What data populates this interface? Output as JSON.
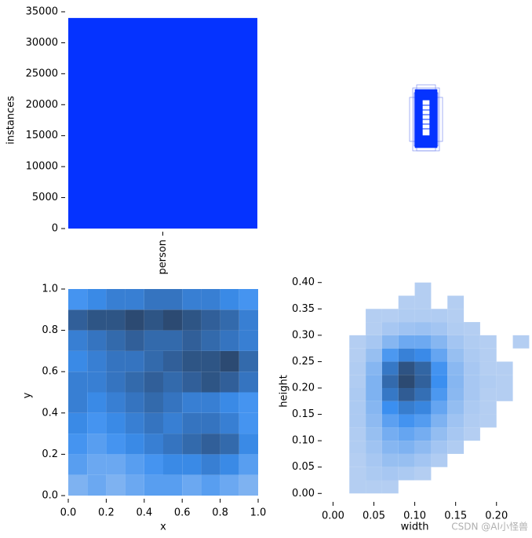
{
  "chart_data": [
    {
      "type": "bar",
      "categories": [
        "person"
      ],
      "values": [
        34000
      ],
      "color": "#0533ff",
      "ylabel": "instances",
      "ylim": [
        0,
        35000
      ],
      "yticks": [
        0,
        5000,
        10000,
        15000,
        20000,
        25000,
        30000,
        35000
      ]
    },
    {
      "type": "hist2d",
      "xlabel": "x",
      "ylabel": "y",
      "xlim": [
        0,
        1
      ],
      "ylim": [
        0,
        1
      ],
      "xticks": [
        {
          "value": 0,
          "label": "0.0"
        },
        0.2,
        0.4,
        0.6,
        0.8,
        {
          "value": 1,
          "label": "1.0"
        }
      ],
      "yticks": [
        {
          "value": 0,
          "label": "0.0"
        },
        0.2,
        0.4,
        0.6,
        0.8,
        {
          "value": 1,
          "label": "1.0"
        }
      ],
      "colors": [
        "#b8d0f2",
        "#3b8ff0",
        "#2c4a72"
      ],
      "x_bins": [
        0,
        0.1,
        0.2,
        0.3,
        0.4,
        0.5,
        0.6,
        0.7,
        0.8,
        0.9,
        1
      ],
      "y_bins": [
        0,
        0.1,
        0.2,
        0.3,
        0.4,
        0.5,
        0.6,
        0.7,
        0.8,
        0.9,
        1
      ],
      "counts": [
        [
          3,
          4,
          3,
          4,
          5,
          5,
          4,
          5,
          4,
          3
        ],
        [
          5,
          4,
          4,
          5,
          6,
          7,
          7,
          8,
          7,
          5
        ],
        [
          6,
          5,
          6,
          7,
          8,
          9,
          10,
          11,
          10,
          7
        ],
        [
          7,
          6,
          7,
          8,
          9,
          8,
          9,
          9,
          8,
          6
        ],
        [
          8,
          7,
          8,
          9,
          10,
          9,
          8,
          8,
          7,
          6
        ],
        [
          8,
          8,
          9,
          10,
          11,
          10,
          11,
          12,
          11,
          9
        ],
        [
          7,
          8,
          9,
          9,
          10,
          11,
          12,
          12,
          13,
          10
        ],
        [
          8,
          9,
          10,
          11,
          10,
          10,
          11,
          10,
          9,
          8
        ],
        [
          11,
          12,
          12,
          13,
          12,
          13,
          12,
          11,
          10,
          8
        ],
        [
          6,
          7,
          8,
          8,
          9,
          9,
          8,
          8,
          7,
          6
        ]
      ]
    },
    {
      "type": "hist2d",
      "xlabel": "width",
      "ylabel": "height",
      "xlim": [
        -0.01,
        0.23
      ],
      "ylim": [
        -0.01,
        0.41
      ],
      "xticks": [
        {
          "value": 0,
          "label": "0.00"
        },
        0.05,
        {
          "value": 0.1,
          "label": "0.10"
        },
        0.15,
        {
          "value": 0.2,
          "label": "0.20"
        }
      ],
      "yticks": [
        {
          "value": 0,
          "label": "0.00"
        },
        0.05,
        {
          "value": 0.1,
          "label": "0.10"
        },
        0.15,
        {
          "value": 0.2,
          "label": "0.20"
        },
        0.25,
        {
          "value": 0.3,
          "label": "0.30"
        },
        0.35,
        {
          "value": 0.4,
          "label": "0.40"
        }
      ],
      "colors": [
        "#b8d0f2",
        "#3b8ff0",
        "#2c4a72"
      ],
      "x_bins": [
        0,
        0.02,
        0.04,
        0.06,
        0.08,
        0.1,
        0.12,
        0.14,
        0.16,
        0.18,
        0.2,
        0.22,
        0.24
      ],
      "y_bins": [
        0,
        0.025,
        0.05,
        0.075,
        0.1,
        0.125,
        0.15,
        0.175,
        0.2,
        0.225,
        0.25,
        0.275,
        0.3,
        0.325,
        0.35,
        0.375,
        0.4
      ],
      "counts": [
        [
          0,
          1,
          1,
          1,
          0,
          0,
          0,
          0,
          0,
          0,
          0,
          0
        ],
        [
          0,
          1,
          3,
          4,
          3,
          1,
          0,
          0,
          0,
          0,
          0,
          0
        ],
        [
          0,
          1,
          4,
          8,
          8,
          5,
          2,
          0,
          0,
          0,
          0,
          0
        ],
        [
          0,
          2,
          6,
          12,
          14,
          10,
          5,
          2,
          0,
          0,
          0,
          0
        ],
        [
          0,
          2,
          8,
          16,
          20,
          16,
          9,
          4,
          1,
          0,
          0,
          0
        ],
        [
          0,
          3,
          10,
          22,
          28,
          24,
          14,
          6,
          2,
          1,
          0,
          0
        ],
        [
          0,
          3,
          12,
          30,
          38,
          34,
          20,
          9,
          3,
          1,
          0,
          0
        ],
        [
          0,
          3,
          14,
          40,
          52,
          44,
          26,
          11,
          4,
          1,
          1,
          0
        ],
        [
          0,
          2,
          14,
          46,
          60,
          50,
          30,
          12,
          4,
          2,
          1,
          0
        ],
        [
          0,
          2,
          12,
          40,
          56,
          48,
          28,
          11,
          4,
          1,
          1,
          0
        ],
        [
          0,
          1,
          8,
          26,
          36,
          32,
          20,
          8,
          3,
          1,
          0,
          0
        ],
        [
          0,
          1,
          4,
          12,
          18,
          18,
          12,
          5,
          2,
          1,
          0,
          1
        ],
        [
          0,
          0,
          1,
          4,
          6,
          7,
          5,
          2,
          1,
          0,
          0,
          0
        ],
        [
          0,
          0,
          1,
          1,
          2,
          2,
          2,
          1,
          0,
          0,
          0,
          0
        ],
        [
          0,
          0,
          0,
          0,
          1,
          1,
          0,
          1,
          0,
          0,
          0,
          0
        ],
        [
          0,
          0,
          0,
          0,
          0,
          1,
          0,
          0,
          0,
          0,
          0,
          0
        ]
      ],
      "watermark": "CSDN @AI小怪兽"
    }
  ]
}
